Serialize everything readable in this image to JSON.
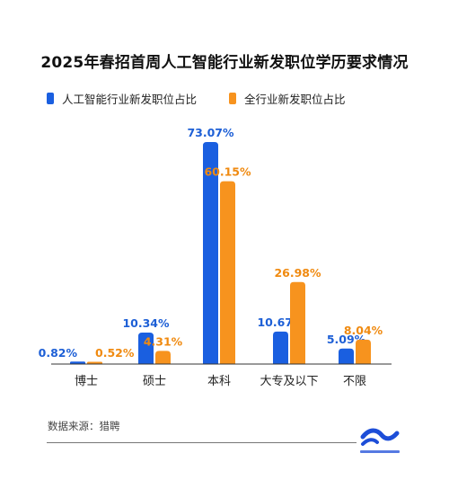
{
  "title": "2025年春招首周人工智能行业新发职位学历要求情况",
  "source": "数据来源：猎聘",
  "colors": {
    "ai": "#1a5fe0",
    "all": "#f7931e",
    "label_ai": "#1d5fd6",
    "label_all": "#f08a10"
  },
  "chart_data": {
    "type": "bar",
    "title": "2025年春招首周人工智能行业新发职位学历要求情况",
    "categories": [
      "博士",
      "硕士",
      "本科",
      "大专及以下",
      "不限"
    ],
    "series": [
      {
        "name": "人工智能行业新发职位占比",
        "values": [
          0.82,
          10.34,
          73.07,
          10.67,
          5.09
        ],
        "labels": [
          "0.82%",
          "10.34%",
          "73.07%",
          "10.67%",
          "5.09%"
        ]
      },
      {
        "name": "全行业新发职位占比",
        "values": [
          0.52,
          4.31,
          60.15,
          26.98,
          8.04
        ],
        "labels": [
          "0.52%",
          "4.31%",
          "60.15%",
          "26.98%",
          "8.04%"
        ]
      }
    ],
    "unit": "%",
    "ylim": [
      0,
      80
    ],
    "grid": false,
    "legend": "top-left"
  }
}
